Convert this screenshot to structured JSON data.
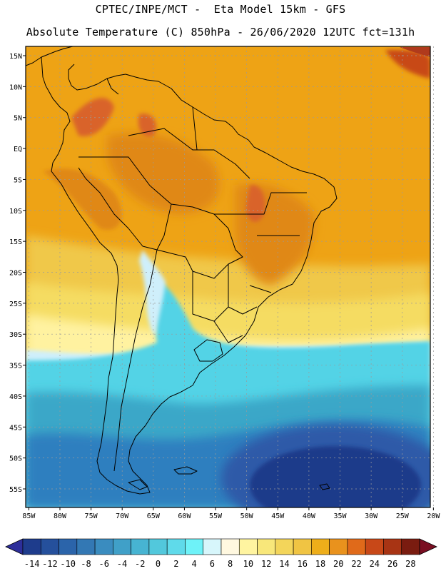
{
  "header": {
    "line1": "CPTEC/INPE/MCT -  Eta Model 15km - GFS",
    "line2": "Absolute Temperature (C) 850hPa - 26/06/2020 12UTC fct=131h"
  },
  "map": {
    "lat_labels": [
      "15N",
      "10N",
      "5N",
      "EQ",
      "5S",
      "10S",
      "15S",
      "20S",
      "25S",
      "30S",
      "35S",
      "40S",
      "45S",
      "50S",
      "55S"
    ],
    "lon_labels": [
      "85W",
      "80W",
      "75W",
      "70W",
      "65W",
      "60W",
      "55W",
      "50W",
      "45W",
      "40W",
      "35W",
      "30W",
      "25W",
      "20W"
    ],
    "lat_values": [
      15,
      10,
      5,
      0,
      -5,
      -10,
      -15,
      -20,
      -25,
      -30,
      -35,
      -40,
      -45,
      -50,
      -55
    ],
    "lon_values": [
      -85,
      -80,
      -75,
      -70,
      -65,
      -60,
      -55,
      -50,
      -45,
      -40,
      -35,
      -30,
      -25,
      -20
    ],
    "lat_range": [
      -58,
      16.5
    ],
    "lon_range": [
      -85.5,
      -20.5
    ],
    "grid": true,
    "colors": {
      "ocean_very_cold": "#1f3a8a",
      "ocean_cold": "#2e5aa8",
      "cold_mid": "#3aa7c8",
      "cyan": "#53d3e6",
      "light_cyan": "#cfeffb",
      "pale_yellow": "#fff7b0",
      "yellow": "#f5dc62",
      "gold": "#f0c84a",
      "orange": "#eea315",
      "dark_orange": "#e08818",
      "red_orange": "#d9632a",
      "brown_red": "#b03a1c",
      "coast_line": "#000000"
    }
  },
  "colorbar": {
    "labels": [
      "-14",
      "-12",
      "-10",
      "-8",
      "-6",
      "-4",
      "-2",
      "0",
      "2",
      "4",
      "6",
      "8",
      "10",
      "12",
      "14",
      "16",
      "18",
      "20",
      "22",
      "24",
      "26",
      "28"
    ],
    "colors": [
      "#1e3c8c",
      "#25509c",
      "#2b64aa",
      "#3378b4",
      "#3a8cbf",
      "#40a0c8",
      "#47b4d2",
      "#52c8dc",
      "#5fdaea",
      "#6ef2f8",
      "#d7f6fb",
      "#fff8e0",
      "#fff4a0",
      "#f8e77a",
      "#f3d55a",
      "#f0c443",
      "#eeae1a",
      "#e9921d",
      "#e06a1a",
      "#c84818",
      "#a83414",
      "#7a1c10"
    ],
    "under_color": "#2d2e9a",
    "over_color": "#7a0f22"
  }
}
